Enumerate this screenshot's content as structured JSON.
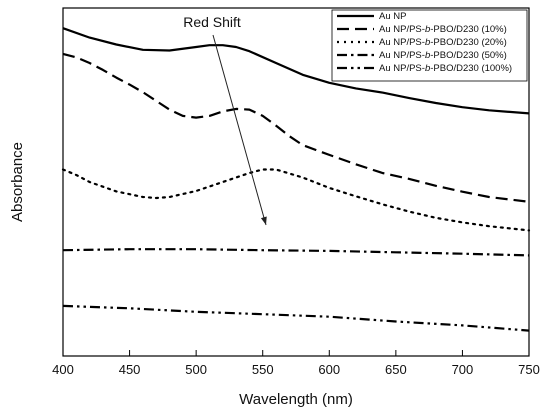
{
  "chart_data": {
    "type": "line",
    "title": "",
    "xlabel": "Wavelength (nm)",
    "ylabel": "Absorbance",
    "xlim": [
      400,
      750
    ],
    "ylim": [
      0,
      1
    ],
    "x_ticks": [
      "400",
      "450",
      "500",
      "550",
      "600",
      "650",
      "700",
      "750"
    ],
    "y_ticks": [],
    "grid": false,
    "legend_position": "top-right",
    "annotation": "Red Shift",
    "series": [
      {
        "name": "Au NP",
        "dash": "solid",
        "x": [
          400,
          420,
          440,
          460,
          480,
          500,
          510,
          520,
          530,
          540,
          560,
          580,
          600,
          620,
          640,
          660,
          680,
          700,
          720,
          750
        ],
        "y": [
          0.942,
          0.915,
          0.895,
          0.88,
          0.878,
          0.888,
          0.893,
          0.893,
          0.888,
          0.876,
          0.842,
          0.808,
          0.785,
          0.769,
          0.757,
          0.741,
          0.727,
          0.715,
          0.706,
          0.697
        ]
      },
      {
        "name": "Au NP/PS-b-PBO/D230 (10%)",
        "dash": "dash",
        "x": [
          400,
          410,
          420,
          430,
          440,
          450,
          460,
          470,
          480,
          490,
          500,
          510,
          520,
          530,
          540,
          550,
          560,
          570,
          580,
          600,
          620,
          640,
          660,
          680,
          700,
          720,
          750
        ],
        "y": [
          0.868,
          0.858,
          0.842,
          0.822,
          0.8,
          0.78,
          0.758,
          0.733,
          0.708,
          0.69,
          0.685,
          0.69,
          0.703,
          0.71,
          0.708,
          0.69,
          0.662,
          0.632,
          0.606,
          0.578,
          0.551,
          0.526,
          0.509,
          0.489,
          0.472,
          0.457,
          0.443
        ]
      },
      {
        "name": "Au NP/PS-b-PBO/D230 (20%)",
        "dash": "dot",
        "x": [
          400,
          410,
          420,
          440,
          460,
          470,
          480,
          500,
          520,
          540,
          550,
          560,
          580,
          600,
          620,
          640,
          660,
          680,
          700,
          720,
          750
        ],
        "y": [
          0.536,
          0.52,
          0.5,
          0.473,
          0.457,
          0.454,
          0.457,
          0.474,
          0.5,
          0.526,
          0.536,
          0.536,
          0.513,
          0.483,
          0.459,
          0.436,
          0.415,
          0.397,
          0.384,
          0.373,
          0.361
        ]
      },
      {
        "name": "Au NP/PS-b-PBO/D230 (50%)",
        "dash": "dashdot",
        "x": [
          400,
          450,
          500,
          550,
          600,
          650,
          700,
          750
        ],
        "y": [
          0.304,
          0.307,
          0.307,
          0.304,
          0.302,
          0.298,
          0.294,
          0.289
        ]
      },
      {
        "name": "Au NP/PS-b-PBO/D230 (100%)",
        "dash": "dashdotdot",
        "x": [
          400,
          450,
          500,
          550,
          600,
          650,
          700,
          750
        ],
        "y": [
          0.144,
          0.137,
          0.127,
          0.12,
          0.113,
          0.099,
          0.088,
          0.073
        ]
      }
    ]
  }
}
